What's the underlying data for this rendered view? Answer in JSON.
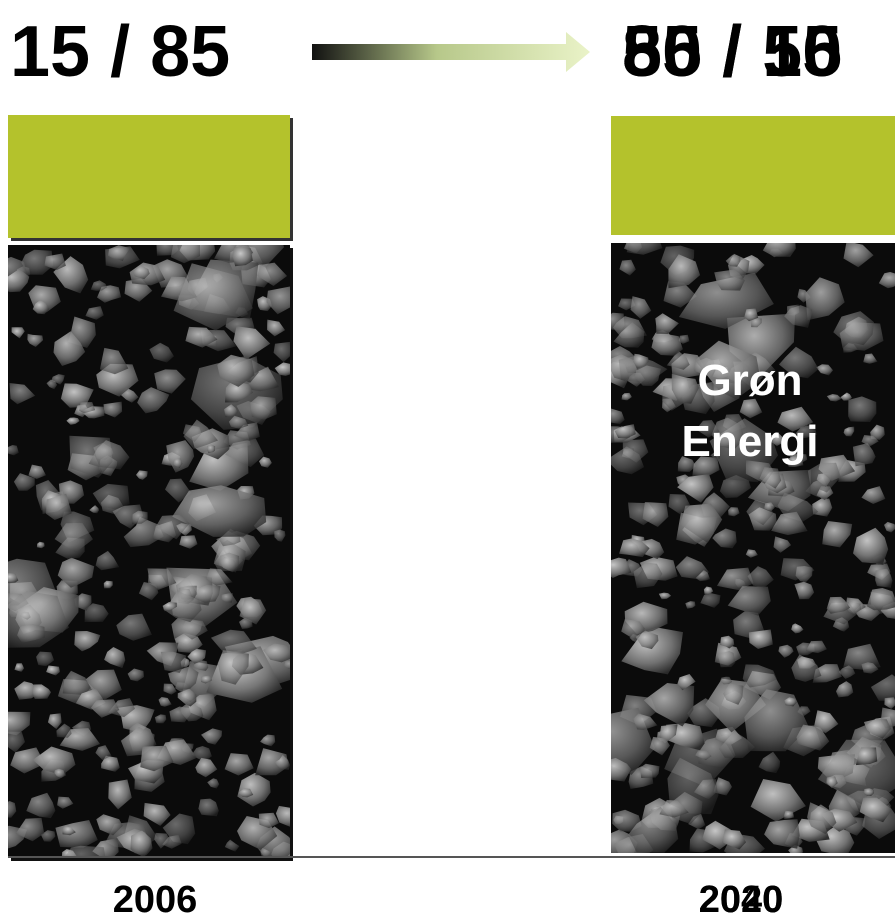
{
  "left": {
    "ratio": "15 / 85",
    "year": "2006"
  },
  "right": {
    "ratios": [
      "85 / 15",
      "50 / 50"
    ],
    "years": [
      "2020",
      "2040"
    ],
    "label": [
      "Grøn",
      "Energi"
    ]
  }
}
